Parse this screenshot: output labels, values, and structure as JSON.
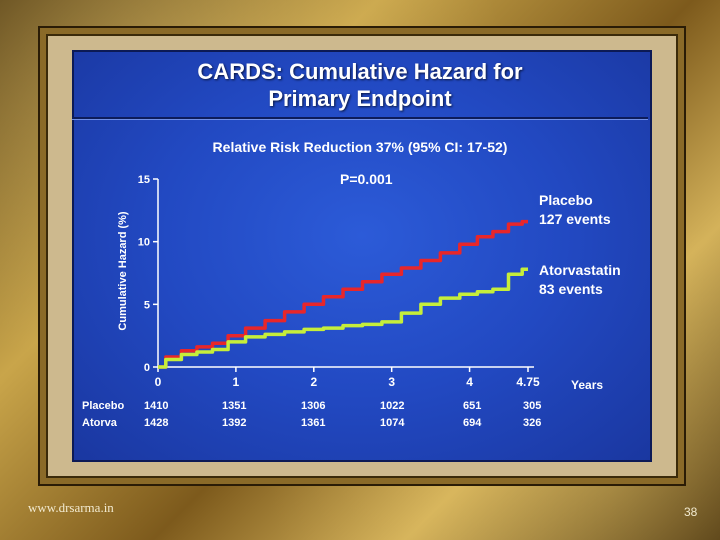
{
  "slide": {
    "title_line1": "CARDS: Cumulative Hazard for",
    "title_line2": "Primary Endpoint",
    "subtitle": "Relative Risk Reduction 37%  (95% CI: 17-52)",
    "p_value": "P=0.001",
    "watermark": "www.drsarma.in",
    "page_number": "38"
  },
  "chart_data": {
    "type": "line",
    "title": "CARDS: Cumulative Hazard for Primary Endpoint",
    "xlabel": "Years",
    "ylabel": "Cumulative Hazard (%)",
    "xlim": [
      0,
      4.75
    ],
    "ylim": [
      0,
      15
    ],
    "x_ticks": [
      "0",
      "1",
      "2",
      "3",
      "4",
      "4.75"
    ],
    "x_tick_values": [
      0,
      1,
      2,
      3,
      4,
      4.75
    ],
    "y_ticks": [
      "0",
      "5",
      "10",
      "15"
    ],
    "y_tick_values": [
      0,
      5,
      10,
      15
    ],
    "colors": {
      "placebo": "#e8262a",
      "atorvastatin": "#c6ee3a",
      "axis": "#ffffff"
    },
    "annotations": {
      "placebo_name": "Placebo",
      "placebo_events": "127 events",
      "atorva_name": "Atorvastatin",
      "atorva_events": "83 events"
    },
    "series": [
      {
        "key": "placebo",
        "x": [
          0,
          0.2,
          0.4,
          0.6,
          0.8,
          1.0,
          1.25,
          1.5,
          1.75,
          2.0,
          2.25,
          2.5,
          2.75,
          3.0,
          3.25,
          3.5,
          3.75,
          4.0,
          4.2,
          4.4,
          4.6,
          4.75
        ],
        "y": [
          0,
          0.8,
          1.3,
          1.6,
          1.9,
          2.5,
          3.1,
          3.7,
          4.4,
          5.0,
          5.6,
          6.2,
          6.8,
          7.4,
          7.9,
          8.5,
          9.1,
          9.8,
          10.4,
          10.8,
          11.4,
          11.6
        ]
      },
      {
        "key": "atorvastatin",
        "x": [
          0,
          0.2,
          0.4,
          0.6,
          0.8,
          1.0,
          1.25,
          1.5,
          1.75,
          2.0,
          2.25,
          2.5,
          2.75,
          3.0,
          3.25,
          3.5,
          3.75,
          4.0,
          4.2,
          4.4,
          4.6,
          4.75
        ],
        "y": [
          0,
          0.6,
          1.0,
          1.2,
          1.4,
          2.0,
          2.4,
          2.6,
          2.8,
          3.0,
          3.1,
          3.3,
          3.4,
          3.6,
          4.3,
          5.0,
          5.5,
          5.8,
          6.0,
          6.2,
          7.4,
          7.8
        ]
      }
    ]
  },
  "at_risk": {
    "rows": [
      {
        "label": "Placebo",
        "values": [
          "1410",
          "1351",
          "1306",
          "1022",
          "651",
          "305"
        ]
      },
      {
        "label": "Atorva",
        "values": [
          "1428",
          "1392",
          "1361",
          "1074",
          "694",
          "326"
        ]
      }
    ]
  }
}
